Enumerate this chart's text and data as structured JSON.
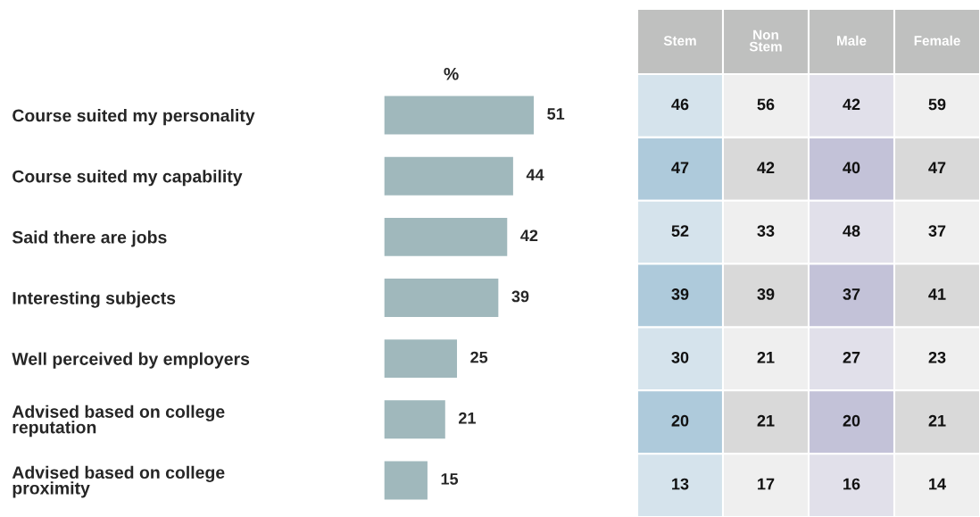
{
  "chart_data": [
    {
      "type": "bar",
      "orientation": "horizontal",
      "xlabel": "%",
      "color": "#a0b8bc",
      "data_labels": true,
      "categories": [
        "Course suited my personality",
        "Course suited my capability",
        "Said there are jobs",
        "Interesting subjects",
        "Well perceived by employers",
        "Advised based on college\nreputation",
        "Advised based on college\nproximity"
      ],
      "values": [
        51,
        44,
        42,
        39,
        25,
        21,
        15
      ]
    },
    {
      "type": "heatmap",
      "categories": [
        "Stem",
        "Non\nStem",
        "Male",
        "Female"
      ],
      "y_categories": [
        null,
        null,
        null,
        null,
        null,
        null,
        null
      ],
      "data_labels": true,
      "cells": [
        [
          46,
          56,
          42,
          59
        ],
        [
          47,
          42,
          40,
          47
        ],
        [
          52,
          33,
          48,
          37
        ],
        [
          39,
          39,
          37,
          41
        ],
        [
          30,
          21,
          27,
          23
        ],
        [
          20,
          21,
          20,
          21
        ],
        [
          13,
          17,
          16,
          14
        ]
      ]
    }
  ]
}
